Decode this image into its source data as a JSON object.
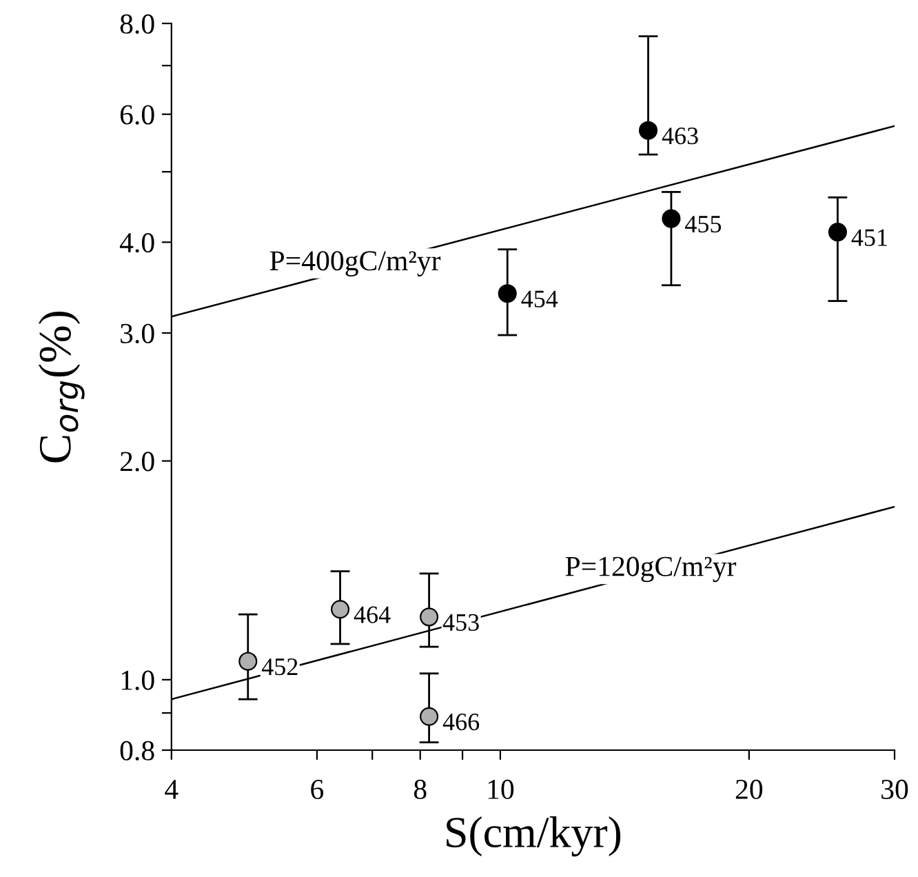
{
  "chart_data": {
    "type": "scatter",
    "xlabel": "S(cm/kyr)",
    "ylabel": "C$_{org}$(%)",
    "log": "xy",
    "grid": false,
    "marker": "circle",
    "xlim": [
      4,
      30
    ],
    "ylim": [
      0.8,
      8.0
    ],
    "xticks": [
      4,
      6,
      8,
      10,
      20,
      30,
      {
        "value": 7,
        "label": null
      },
      {
        "value": 9,
        "label": null
      }
    ],
    "yticks": [
      {
        "value": 0.8,
        "label": "0.8"
      },
      {
        "value": 1.0,
        "label": "1.0"
      },
      {
        "value": 2.0,
        "label": "2.0"
      },
      {
        "value": 3.0,
        "label": "3.0"
      },
      {
        "value": 4.0,
        "label": "4.0"
      },
      {
        "value": 6.0,
        "label": "6.0"
      },
      {
        "value": 8.0,
        "label": "8.0"
      },
      {
        "value": 0.9,
        "label": null
      },
      {
        "value": 5.0,
        "label": null
      },
      {
        "value": 7.0,
        "label": null
      }
    ],
    "series": [
      {
        "color": "#000000",
        "x": [
          15.1,
          16.1,
          25.6,
          10.2
        ],
        "values": [
          5.7,
          4.31,
          4.13,
          3.4
        ],
        "errors": [
          [
            5.28,
            7.68
          ],
          [
            3.49,
            4.69
          ],
          [
            3.32,
            4.61
          ],
          [
            2.98,
            3.91
          ]
        ]
      },
      {
        "color": "#b0b0b0",
        "x": [
          4.95,
          6.4,
          8.2,
          8.2
        ],
        "values": [
          1.06,
          1.25,
          1.22,
          0.89
        ],
        "errors": [
          [
            0.94,
            1.23
          ],
          [
            1.12,
            1.41
          ],
          [
            1.11,
            1.4
          ],
          [
            0.82,
            1.02
          ]
        ]
      },
      {
        "type": "line",
        "marker": "none",
        "color": "#000000",
        "x": [
          4,
          30
        ],
        "values": [
          3.16,
          5.78
        ]
      },
      {
        "type": "line",
        "marker": "none",
        "color": "#000000",
        "x": [
          4,
          30
        ],
        "values": [
          0.94,
          1.73
        ]
      }
    ],
    "annotations": [
      {
        "text": "463",
        "x": 15.1,
        "y": 5.7
      },
      {
        "text": "455",
        "x": 16.1,
        "y": 4.31
      },
      {
        "text": "451",
        "x": 25.6,
        "y": 4.13
      },
      {
        "text": "454",
        "x": 10.2,
        "y": 3.4
      },
      {
        "text": "452",
        "x": 4.95,
        "y": 1.06
      },
      {
        "text": "464",
        "x": 6.4,
        "y": 1.25
      },
      {
        "text": "453",
        "x": 8.2,
        "y": 1.22
      },
      {
        "text": "466",
        "x": 8.2,
        "y": 0.89
      },
      {
        "text": "P=400gC/m²yr",
        "x": 6.67,
        "y": 3.74
      },
      {
        "text": "P=120gC/m²yr",
        "x": 15.2,
        "y": 1.42
      }
    ]
  }
}
